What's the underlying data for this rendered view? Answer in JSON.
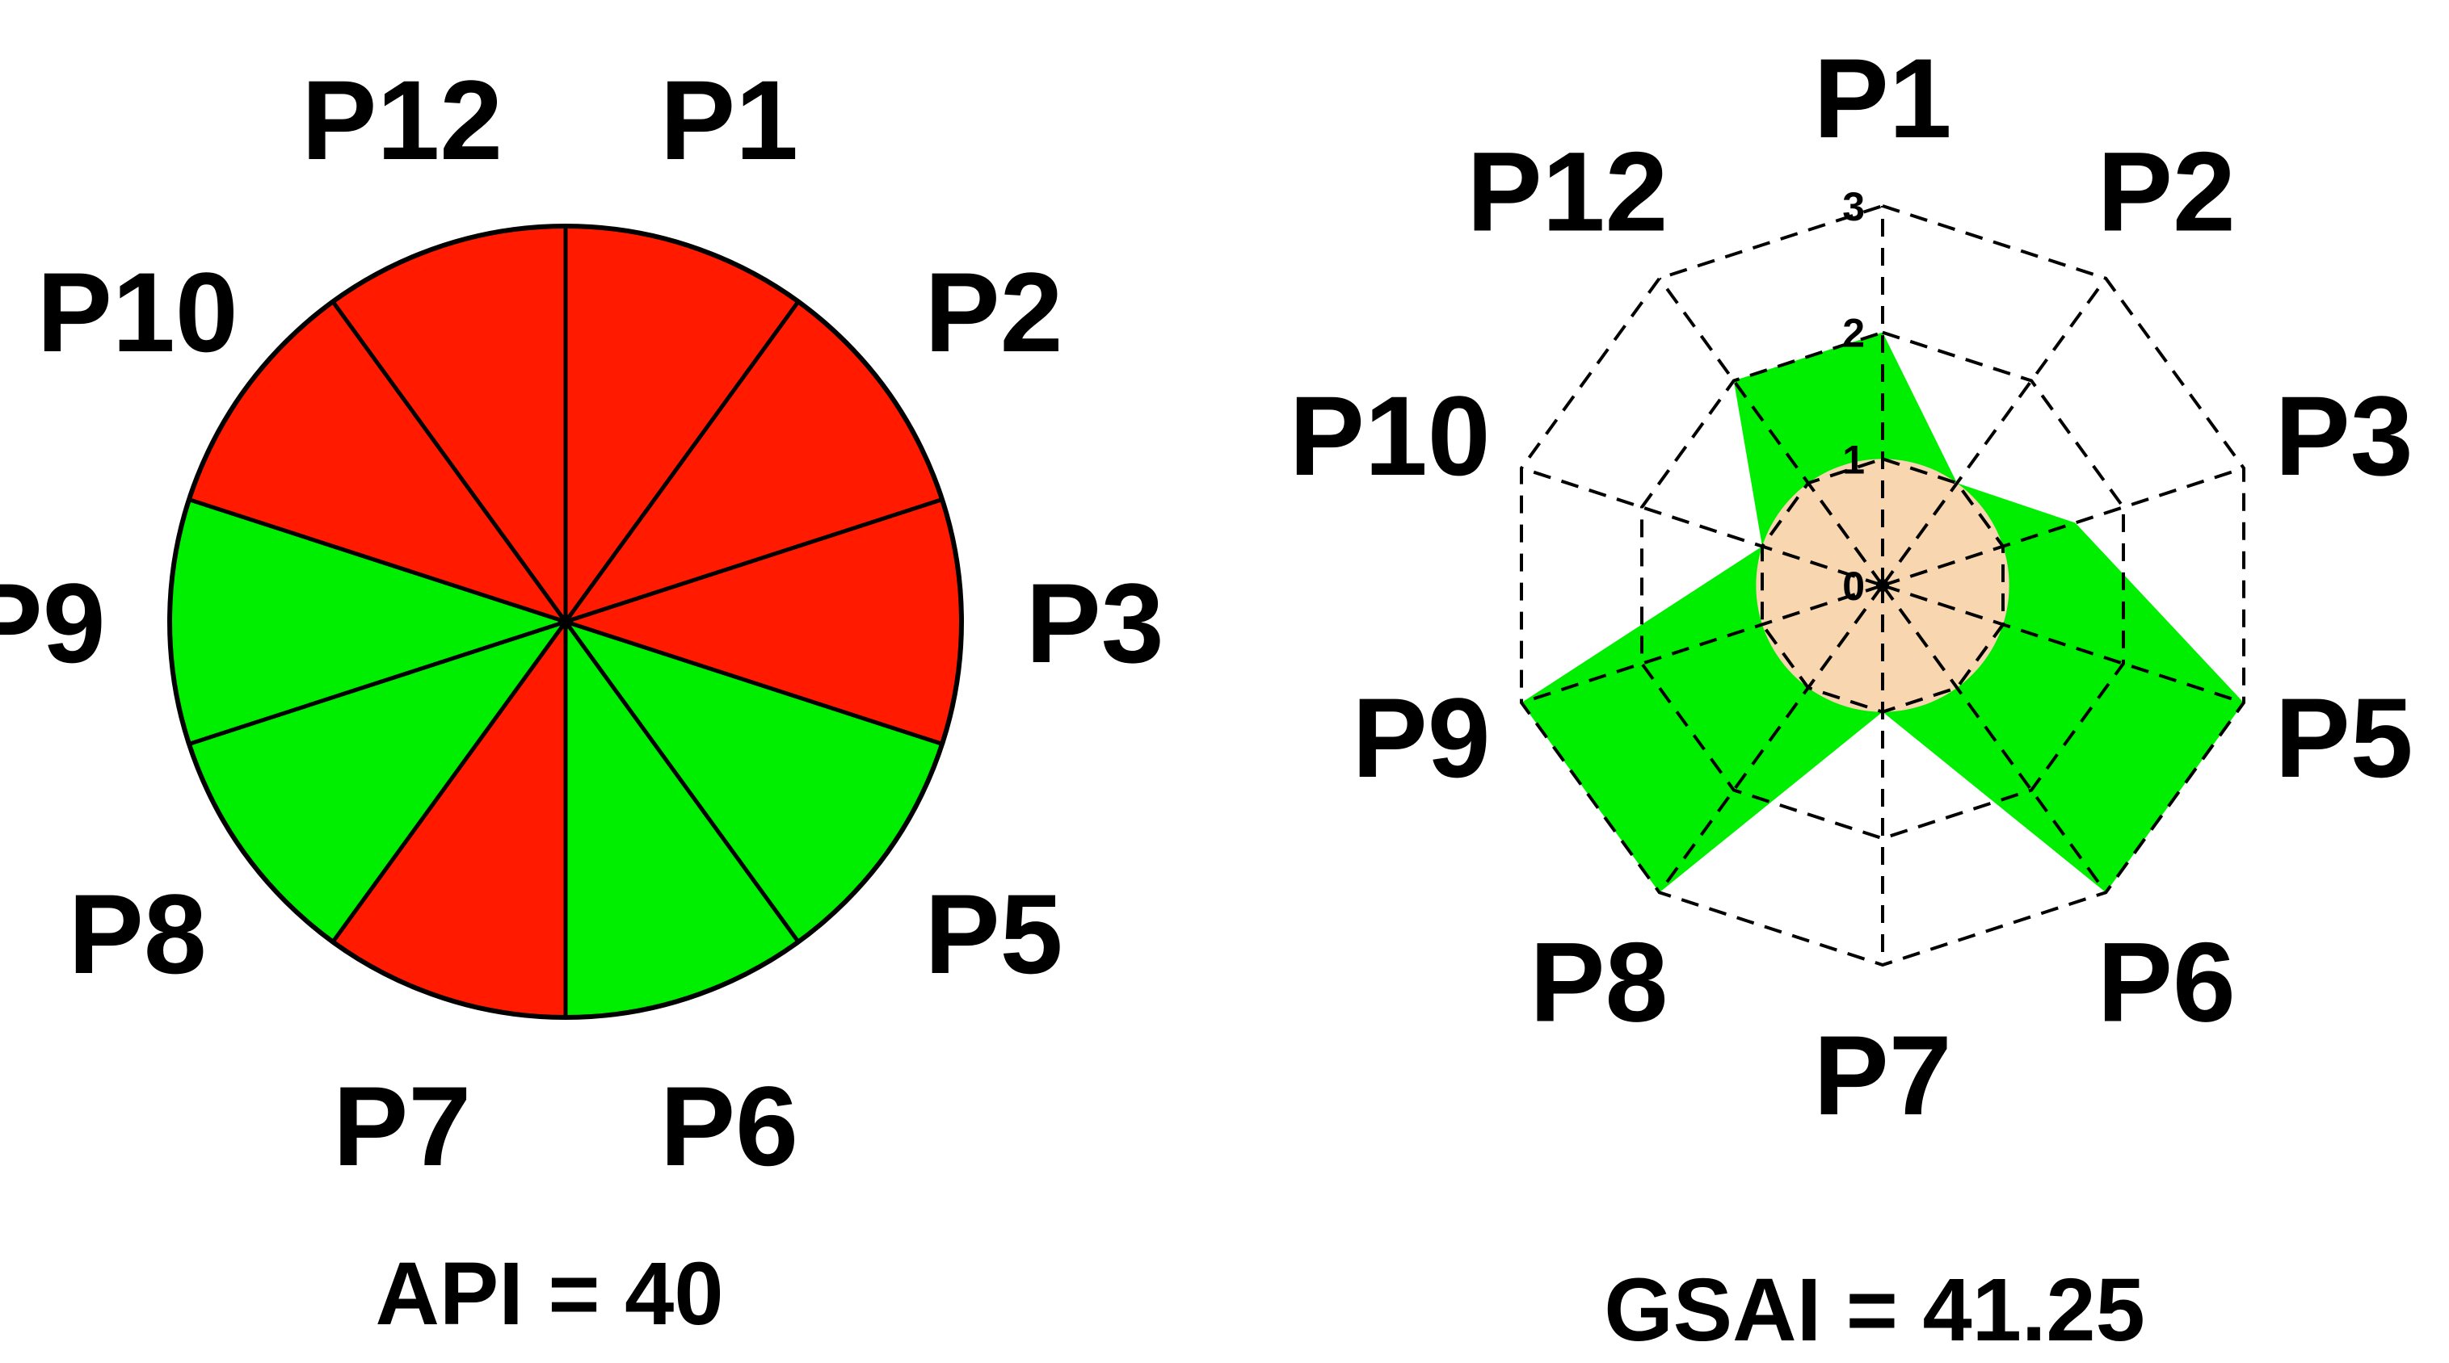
{
  "chart_data": [
    {
      "type": "pie",
      "categories": [
        "P1",
        "P2",
        "P3",
        "P5",
        "P6",
        "P7",
        "P8",
        "P9",
        "P10",
        "P12"
      ],
      "values": [
        1,
        1,
        1,
        1,
        1,
        1,
        1,
        1,
        1,
        1
      ],
      "status": [
        "red",
        "red",
        "red",
        "green",
        "green",
        "red",
        "green",
        "green",
        "red",
        "red"
      ],
      "colors": {
        "red": "#ff1a00",
        "green": "#00ee00"
      },
      "caption": "API = 40"
    },
    {
      "type": "radar",
      "categories": [
        "P1",
        "P2",
        "P3",
        "P5",
        "P6",
        "P7",
        "P8",
        "P9",
        "P10",
        "P12"
      ],
      "values": [
        2,
        1,
        1.6,
        3,
        3,
        1,
        3,
        3,
        1,
        2
      ],
      "inner_circle_value": 1,
      "rlim": [
        0,
        3
      ],
      "ticks": [
        "0",
        "1",
        "2",
        "3"
      ],
      "colors": {
        "fill": "#00ee00",
        "inner": "#f8d7b0",
        "grid": "#000000"
      },
      "caption": "GSAI = 41.25"
    }
  ]
}
